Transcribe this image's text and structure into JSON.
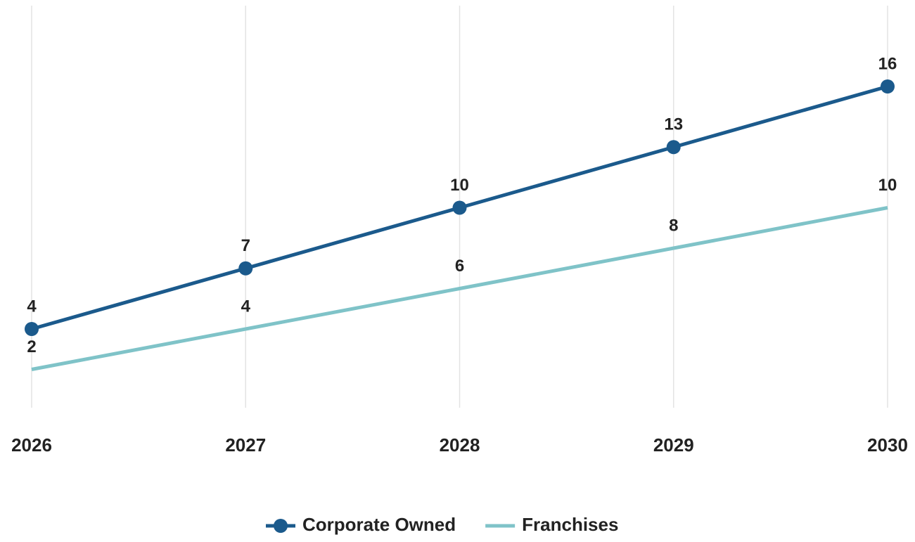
{
  "chart_data": {
    "type": "line",
    "categories": [
      "2026",
      "2027",
      "2028",
      "2029",
      "2030"
    ],
    "series": [
      {
        "name": "Corporate Owned",
        "color": "#1b5a8c",
        "values": [
          4,
          7,
          10,
          13,
          16
        ],
        "markers": true
      },
      {
        "name": "Franchises",
        "color": "#7fc3c8",
        "values": [
          2,
          4,
          6,
          8,
          10
        ],
        "markers": false
      }
    ],
    "ylim": [
      0,
      20
    ],
    "grid": true,
    "legend": "bottom"
  }
}
